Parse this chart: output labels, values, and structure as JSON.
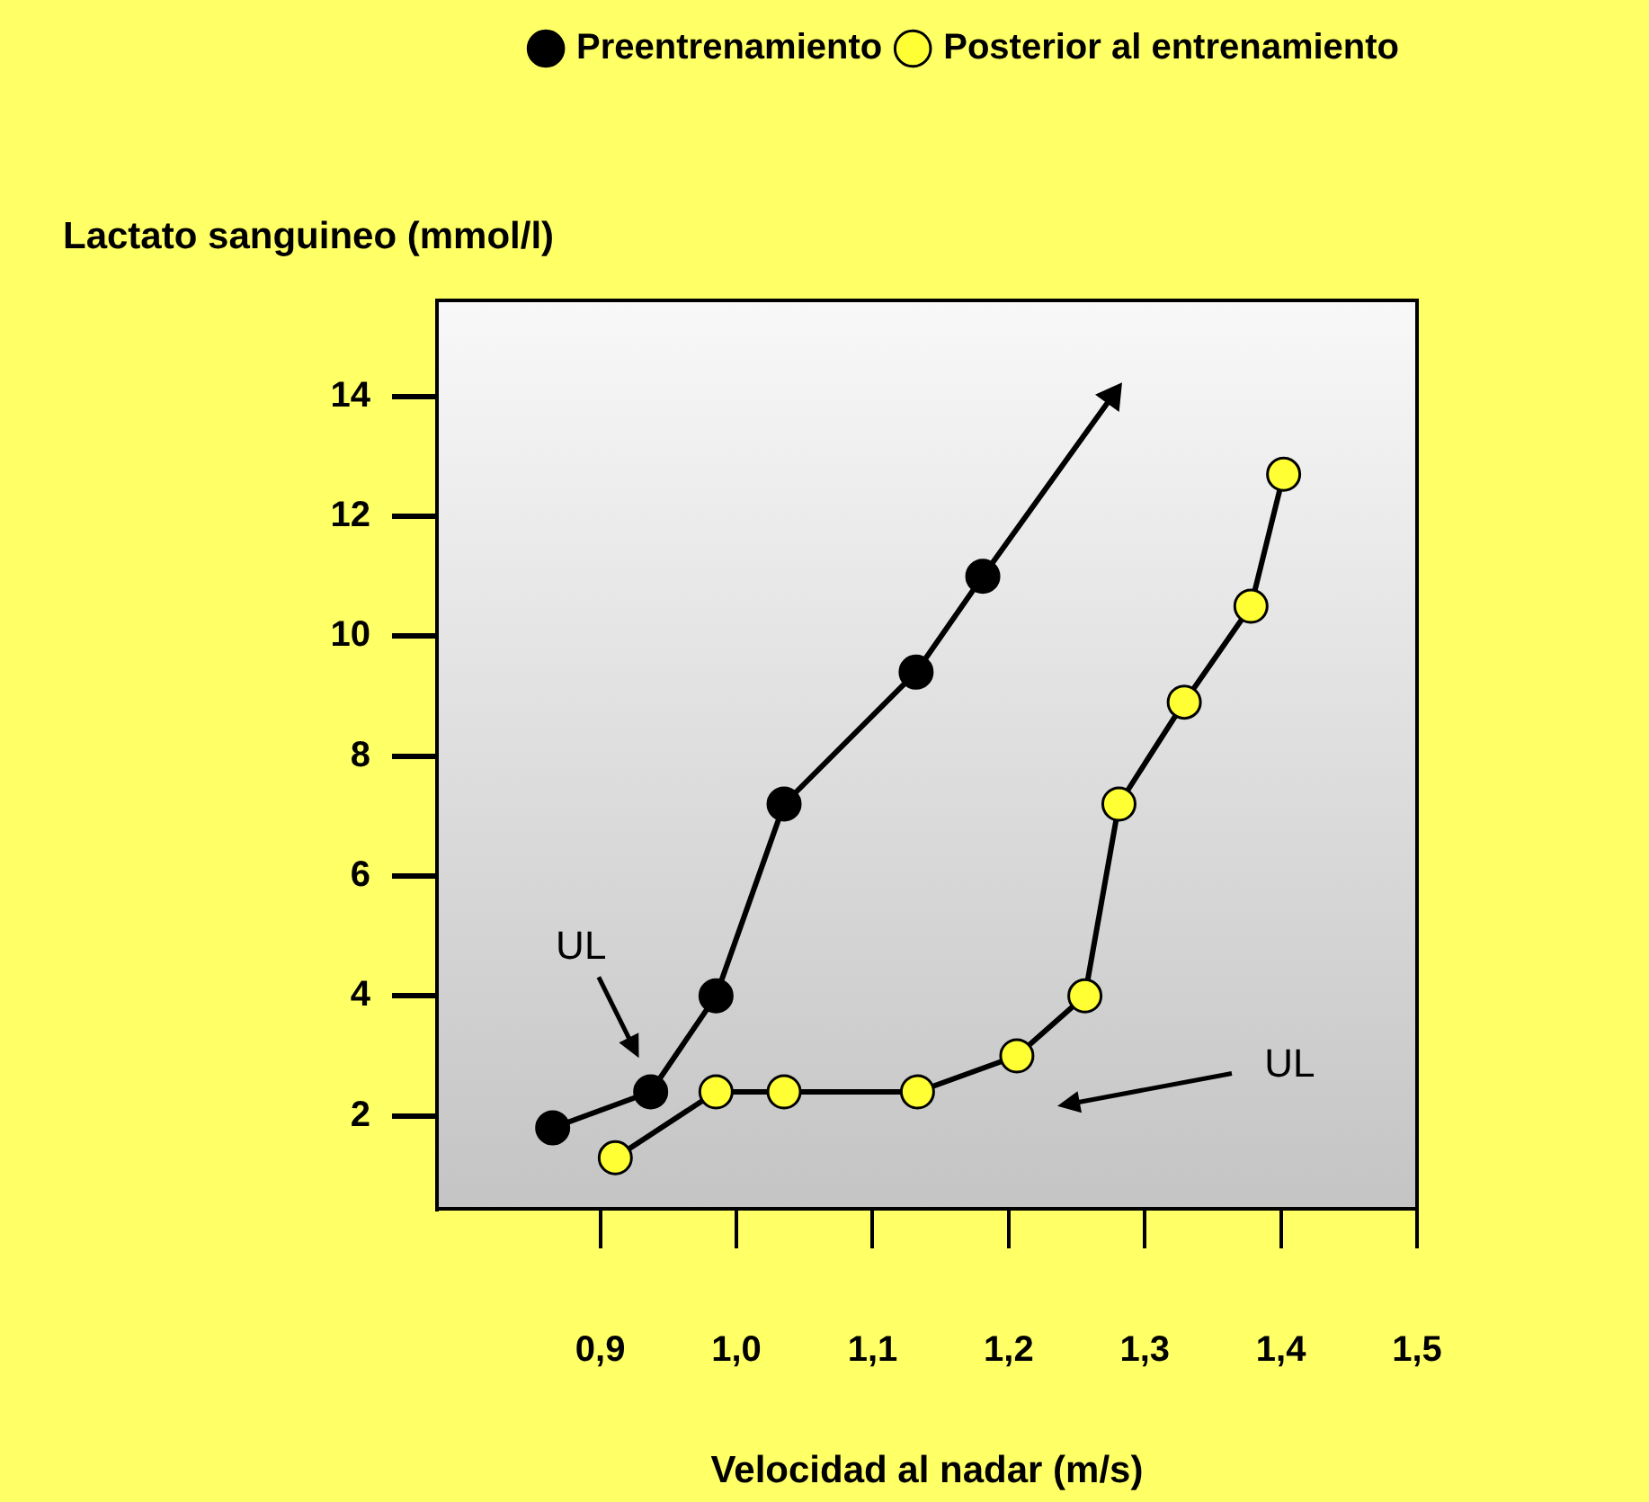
{
  "chart_data": {
    "type": "line",
    "xlabel": "Velocidad al nadar (m/s)",
    "ylabel": "Lactato sanguineo (mmol/l)",
    "xlim": [
      0.78,
      1.5
    ],
    "ylim": [
      0.45,
      15.6
    ],
    "xticks": [
      {
        "value": 0.9,
        "label": "0,9"
      },
      {
        "value": 1.0,
        "label": "1,0"
      },
      {
        "value": 1.1,
        "label": "1,1"
      },
      {
        "value": 1.2,
        "label": "1,2"
      },
      {
        "value": 1.3,
        "label": "1,3"
      },
      {
        "value": 1.4,
        "label": "1,4"
      },
      {
        "value": 1.5,
        "label": "1,5"
      }
    ],
    "yticks": [
      2,
      4,
      6,
      8,
      10,
      12,
      14
    ],
    "legend": "top right",
    "marker": "circle",
    "line_style": "solid",
    "series": [
      {
        "name": "Preentrenamiento",
        "color": "#000000",
        "x": [
          0.865,
          0.937,
          0.985,
          1.035,
          1.132,
          1.181,
          1.276
        ],
        "values": [
          1.8,
          2.4,
          4.0,
          7.2,
          9.4,
          11.0,
          14.0
        ]
      },
      {
        "name": "Posterior al entrenamiento",
        "color": "#ffff33",
        "x": [
          0.911,
          0.985,
          1.035,
          1.133,
          1.206,
          1.256,
          1.281,
          1.329,
          1.378,
          1.402
        ],
        "values": [
          1.3,
          2.4,
          2.4,
          2.4,
          3.0,
          4.0,
          7.2,
          8.9,
          10.5,
          12.7
        ]
      }
    ],
    "annotations": [
      "UL",
      "UL"
    ]
  }
}
